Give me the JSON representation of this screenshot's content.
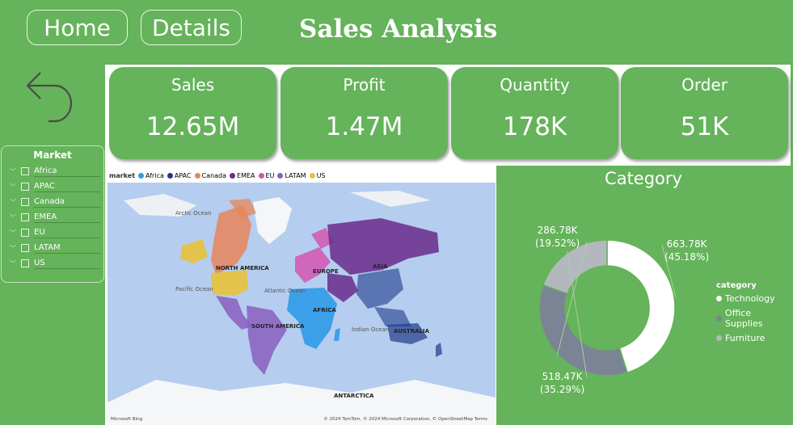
{
  "nav": {
    "home_label": "Home",
    "details_label": "Details"
  },
  "page": {
    "title": "Sales Analysis"
  },
  "kpis": [
    {
      "label": "Sales",
      "value": "12.65M"
    },
    {
      "label": "Profit",
      "value": "1.47M"
    },
    {
      "label": "Quantity",
      "value": "178K"
    },
    {
      "label": "Order",
      "value": "51K"
    }
  ],
  "slicer": {
    "title": "Market",
    "items": [
      {
        "label": "Africa"
      },
      {
        "label": "APAC"
      },
      {
        "label": "Canada"
      },
      {
        "label": "EMEA"
      },
      {
        "label": "EU"
      },
      {
        "label": "LATAM"
      },
      {
        "label": "US"
      }
    ]
  },
  "map": {
    "legend_title": "market",
    "legend": [
      {
        "label": "Africa",
        "color": "#2f9be8"
      },
      {
        "label": "APAC",
        "color": "#1f3a8a"
      },
      {
        "label": "Canada",
        "color": "#e8845a"
      },
      {
        "label": "EMEA",
        "color": "#6b2a8c"
      },
      {
        "label": "EU",
        "color": "#d455b0"
      },
      {
        "label": "LATAM",
        "color": "#8a5fbf"
      },
      {
        "label": "US",
        "color": "#e8c23a"
      }
    ],
    "ocean_labels": {
      "arctic": "Arctic Ocean",
      "pacific": "Pacific Ocean",
      "atlantic": "Atlantic Ocean",
      "indian": "Indian Ocean"
    },
    "continent_labels": {
      "north_america": "NORTH AMERICA",
      "south_america": "SOUTH AMERICA",
      "europe": "EUROPE",
      "asia": "ASIA",
      "africa": "AFRICA",
      "australia": "AUSTRALIA",
      "antarctica": "ANTARCTICA"
    },
    "footer": "© 2024 TomTom, © 2024 Microsoft Corporation, © OpenStreetMap  Terms",
    "brand": "Microsoft Bing"
  },
  "category_chart": {
    "title": "Category",
    "legend_title": "category",
    "labels": [
      {
        "value": "663.78K",
        "pct": "(45.18%)"
      },
      {
        "value": "518.47K",
        "pct": "(35.29%)"
      },
      {
        "value": "286.78K",
        "pct": "(19.52%)"
      }
    ]
  },
  "chart_data": {
    "type": "pie",
    "title": "Category",
    "categories": [
      "Technology",
      "Office Supplies",
      "Furniture"
    ],
    "values": [
      663.78,
      518.47,
      286.78
    ],
    "percentages": [
      45.18,
      35.29,
      19.52
    ],
    "colors": [
      "#ffffff",
      "#7b8494",
      "#b3b8bf"
    ],
    "legend_position": "right"
  }
}
